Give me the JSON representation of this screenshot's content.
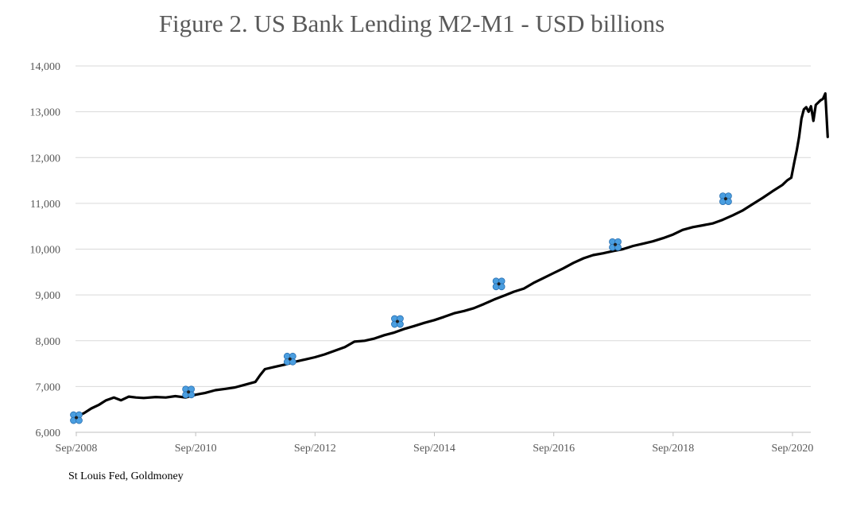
{
  "chart_data": {
    "type": "line",
    "title": "Figure 2. US Bank Lending M2-M1 - USD billions",
    "xlabel": "",
    "ylabel": "",
    "ylim": [
      6000,
      14000
    ],
    "yticks": [
      "14,000",
      "13,000",
      "12,000",
      "11,000",
      "10,000",
      "9,000",
      "8,000",
      "7,000",
      "6,000"
    ],
    "xlim": [
      2008.67,
      2020.95
    ],
    "xticks": [
      {
        "label": "Sep/2008",
        "x": 2008.67
      },
      {
        "label": "Sep/2010",
        "x": 2010.67
      },
      {
        "label": "Sep/2012",
        "x": 2012.67
      },
      {
        "label": "Sep/2014",
        "x": 2014.67
      },
      {
        "label": "Sep/2016",
        "x": 2016.67
      },
      {
        "label": "Sep/2018",
        "x": 2018.67
      },
      {
        "label": "Sep/2020",
        "x": 2020.67
      }
    ],
    "grid": true,
    "legend": "none",
    "line_color": "#000000",
    "marker_color": "#4a9ee0",
    "series": [
      {
        "values": [
          [
            2008.67,
            6340
          ],
          [
            2008.8,
            6420
          ],
          [
            2008.92,
            6520
          ],
          [
            2009.05,
            6600
          ],
          [
            2009.17,
            6700
          ],
          [
            2009.3,
            6760
          ],
          [
            2009.42,
            6700
          ],
          [
            2009.55,
            6780
          ],
          [
            2009.67,
            6760
          ],
          [
            2009.8,
            6750
          ],
          [
            2010.0,
            6770
          ],
          [
            2010.17,
            6760
          ],
          [
            2010.33,
            6790
          ],
          [
            2010.5,
            6760
          ],
          [
            2010.67,
            6820
          ],
          [
            2010.83,
            6860
          ],
          [
            2011.0,
            6920
          ],
          [
            2011.17,
            6950
          ],
          [
            2011.33,
            6980
          ],
          [
            2011.5,
            7040
          ],
          [
            2011.67,
            7100
          ],
          [
            2011.75,
            7250
          ],
          [
            2011.83,
            7380
          ],
          [
            2012.0,
            7430
          ],
          [
            2012.17,
            7480
          ],
          [
            2012.33,
            7540
          ],
          [
            2012.5,
            7590
          ],
          [
            2012.67,
            7640
          ],
          [
            2012.83,
            7700
          ],
          [
            2013.0,
            7780
          ],
          [
            2013.17,
            7860
          ],
          [
            2013.33,
            7980
          ],
          [
            2013.5,
            8000
          ],
          [
            2013.67,
            8050
          ],
          [
            2013.83,
            8120
          ],
          [
            2014.0,
            8180
          ],
          [
            2014.17,
            8260
          ],
          [
            2014.33,
            8320
          ],
          [
            2014.5,
            8390
          ],
          [
            2014.67,
            8450
          ],
          [
            2014.83,
            8520
          ],
          [
            2015.0,
            8600
          ],
          [
            2015.17,
            8650
          ],
          [
            2015.33,
            8710
          ],
          [
            2015.5,
            8800
          ],
          [
            2015.67,
            8900
          ],
          [
            2015.83,
            8980
          ],
          [
            2016.0,
            9070
          ],
          [
            2016.17,
            9140
          ],
          [
            2016.33,
            9260
          ],
          [
            2016.5,
            9370
          ],
          [
            2016.67,
            9480
          ],
          [
            2016.83,
            9580
          ],
          [
            2017.0,
            9700
          ],
          [
            2017.17,
            9800
          ],
          [
            2017.33,
            9870
          ],
          [
            2017.5,
            9910
          ],
          [
            2017.67,
            9960
          ],
          [
            2017.83,
            10000
          ],
          [
            2018.0,
            10070
          ],
          [
            2018.17,
            10120
          ],
          [
            2018.33,
            10170
          ],
          [
            2018.5,
            10240
          ],
          [
            2018.67,
            10320
          ],
          [
            2018.83,
            10420
          ],
          [
            2019.0,
            10480
          ],
          [
            2019.17,
            10520
          ],
          [
            2019.33,
            10560
          ],
          [
            2019.5,
            10640
          ],
          [
            2019.67,
            10740
          ],
          [
            2019.83,
            10840
          ],
          [
            2020.0,
            10980
          ],
          [
            2020.17,
            11120
          ],
          [
            2020.33,
            11260
          ],
          [
            2020.5,
            11400
          ],
          [
            2020.58,
            11500
          ],
          [
            2020.65,
            11560
          ],
          [
            2020.7,
            11900
          ],
          [
            2020.74,
            12150
          ],
          [
            2020.78,
            12450
          ],
          [
            2020.82,
            12850
          ],
          [
            2020.86,
            13050
          ],
          [
            2020.9,
            13100
          ],
          [
            2020.94,
            13000
          ],
          [
            2020.98,
            13120
          ],
          [
            2021.02,
            12800
          ],
          [
            2021.06,
            13150
          ],
          [
            2021.1,
            13200
          ],
          [
            2021.14,
            13250
          ],
          [
            2021.18,
            13280
          ],
          [
            2021.22,
            13400
          ],
          [
            2021.26,
            12450
          ]
        ]
      }
    ],
    "markers": [
      [
        2008.67,
        6320
      ],
      [
        2010.55,
        6880
      ],
      [
        2012.25,
        7600
      ],
      [
        2014.05,
        8420
      ],
      [
        2015.75,
        9240
      ],
      [
        2017.7,
        10100
      ],
      [
        2019.55,
        11100
      ]
    ],
    "source": "St Louis Fed, Goldmoney"
  }
}
